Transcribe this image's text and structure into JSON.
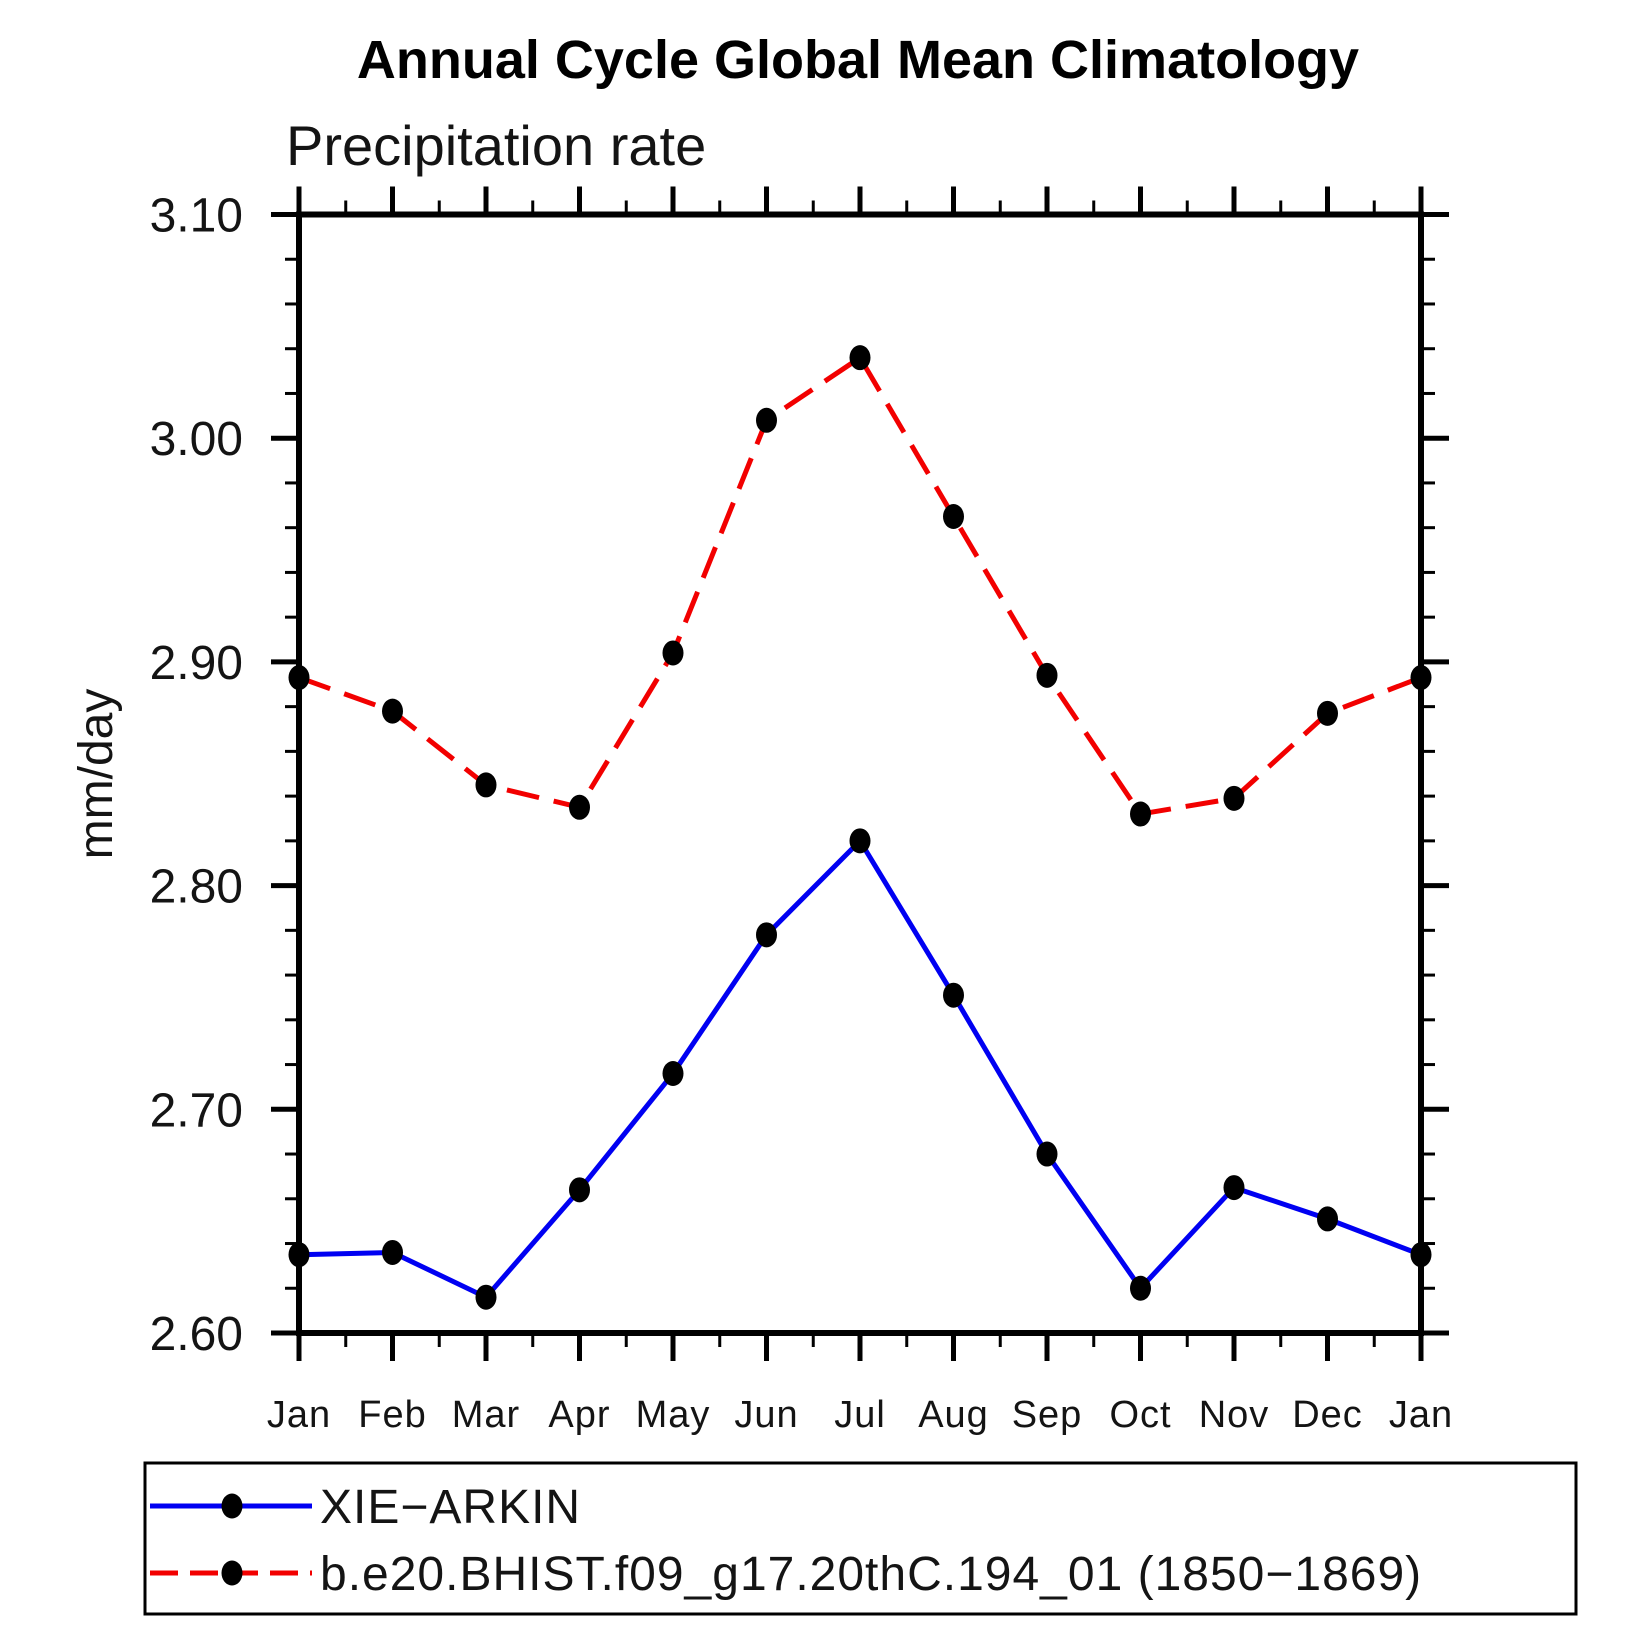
{
  "title": "Annual Cycle Global Mean Climatology",
  "subtitle": "Precipitation rate",
  "ylabel": "mm/day",
  "colors": {
    "axis": "#000000",
    "text": "#141414",
    "marker": "#000000",
    "series_obs": "#0000f2",
    "series_model": "#f20000"
  },
  "legend": {
    "entries": [
      {
        "label": "XIE−ARKIN",
        "style": "solid",
        "color": "#0000f2"
      },
      {
        "label": "b.e20.BHIST.f09_g17.20thC.194_01 (1850−1869)",
        "style": "dashed",
        "color": "#f20000"
      }
    ]
  },
  "chart_data": {
    "type": "line",
    "title": "Annual Cycle Global Mean Climatology",
    "subtitle": "Precipitation rate",
    "xlabel": "",
    "ylabel": "mm/day",
    "x_categories": [
      "Jan",
      "Feb",
      "Mar",
      "Apr",
      "May",
      "Jun",
      "Jul",
      "Aug",
      "Sep",
      "Oct",
      "Nov",
      "Dec",
      "Jan"
    ],
    "series": [
      {
        "name": "XIE−ARKIN",
        "color": "#0000f2",
        "line_style": "solid",
        "marker": "filled-circle",
        "values": [
          2.635,
          2.636,
          2.616,
          2.664,
          2.716,
          2.778,
          2.82,
          2.751,
          2.68,
          2.62,
          2.665,
          2.651,
          2.635
        ]
      },
      {
        "name": "b.e20.BHIST.f09_g17.20thC.194_01 (1850−1869)",
        "color": "#f20000",
        "line_style": "dashed",
        "marker": "filled-circle",
        "values": [
          2.893,
          2.878,
          2.845,
          2.835,
          2.904,
          3.008,
          3.036,
          2.965,
          2.894,
          2.832,
          2.839,
          2.877,
          2.893
        ]
      }
    ],
    "ylim": [
      2.6,
      3.1
    ],
    "ytick_major_step": 0.1,
    "ytick_minor_step": 0.02,
    "ytick_labels": [
      "2.60",
      "2.70",
      "2.80",
      "2.90",
      "3.00",
      "3.10"
    ],
    "grid": false,
    "legend_position": "bottom"
  }
}
